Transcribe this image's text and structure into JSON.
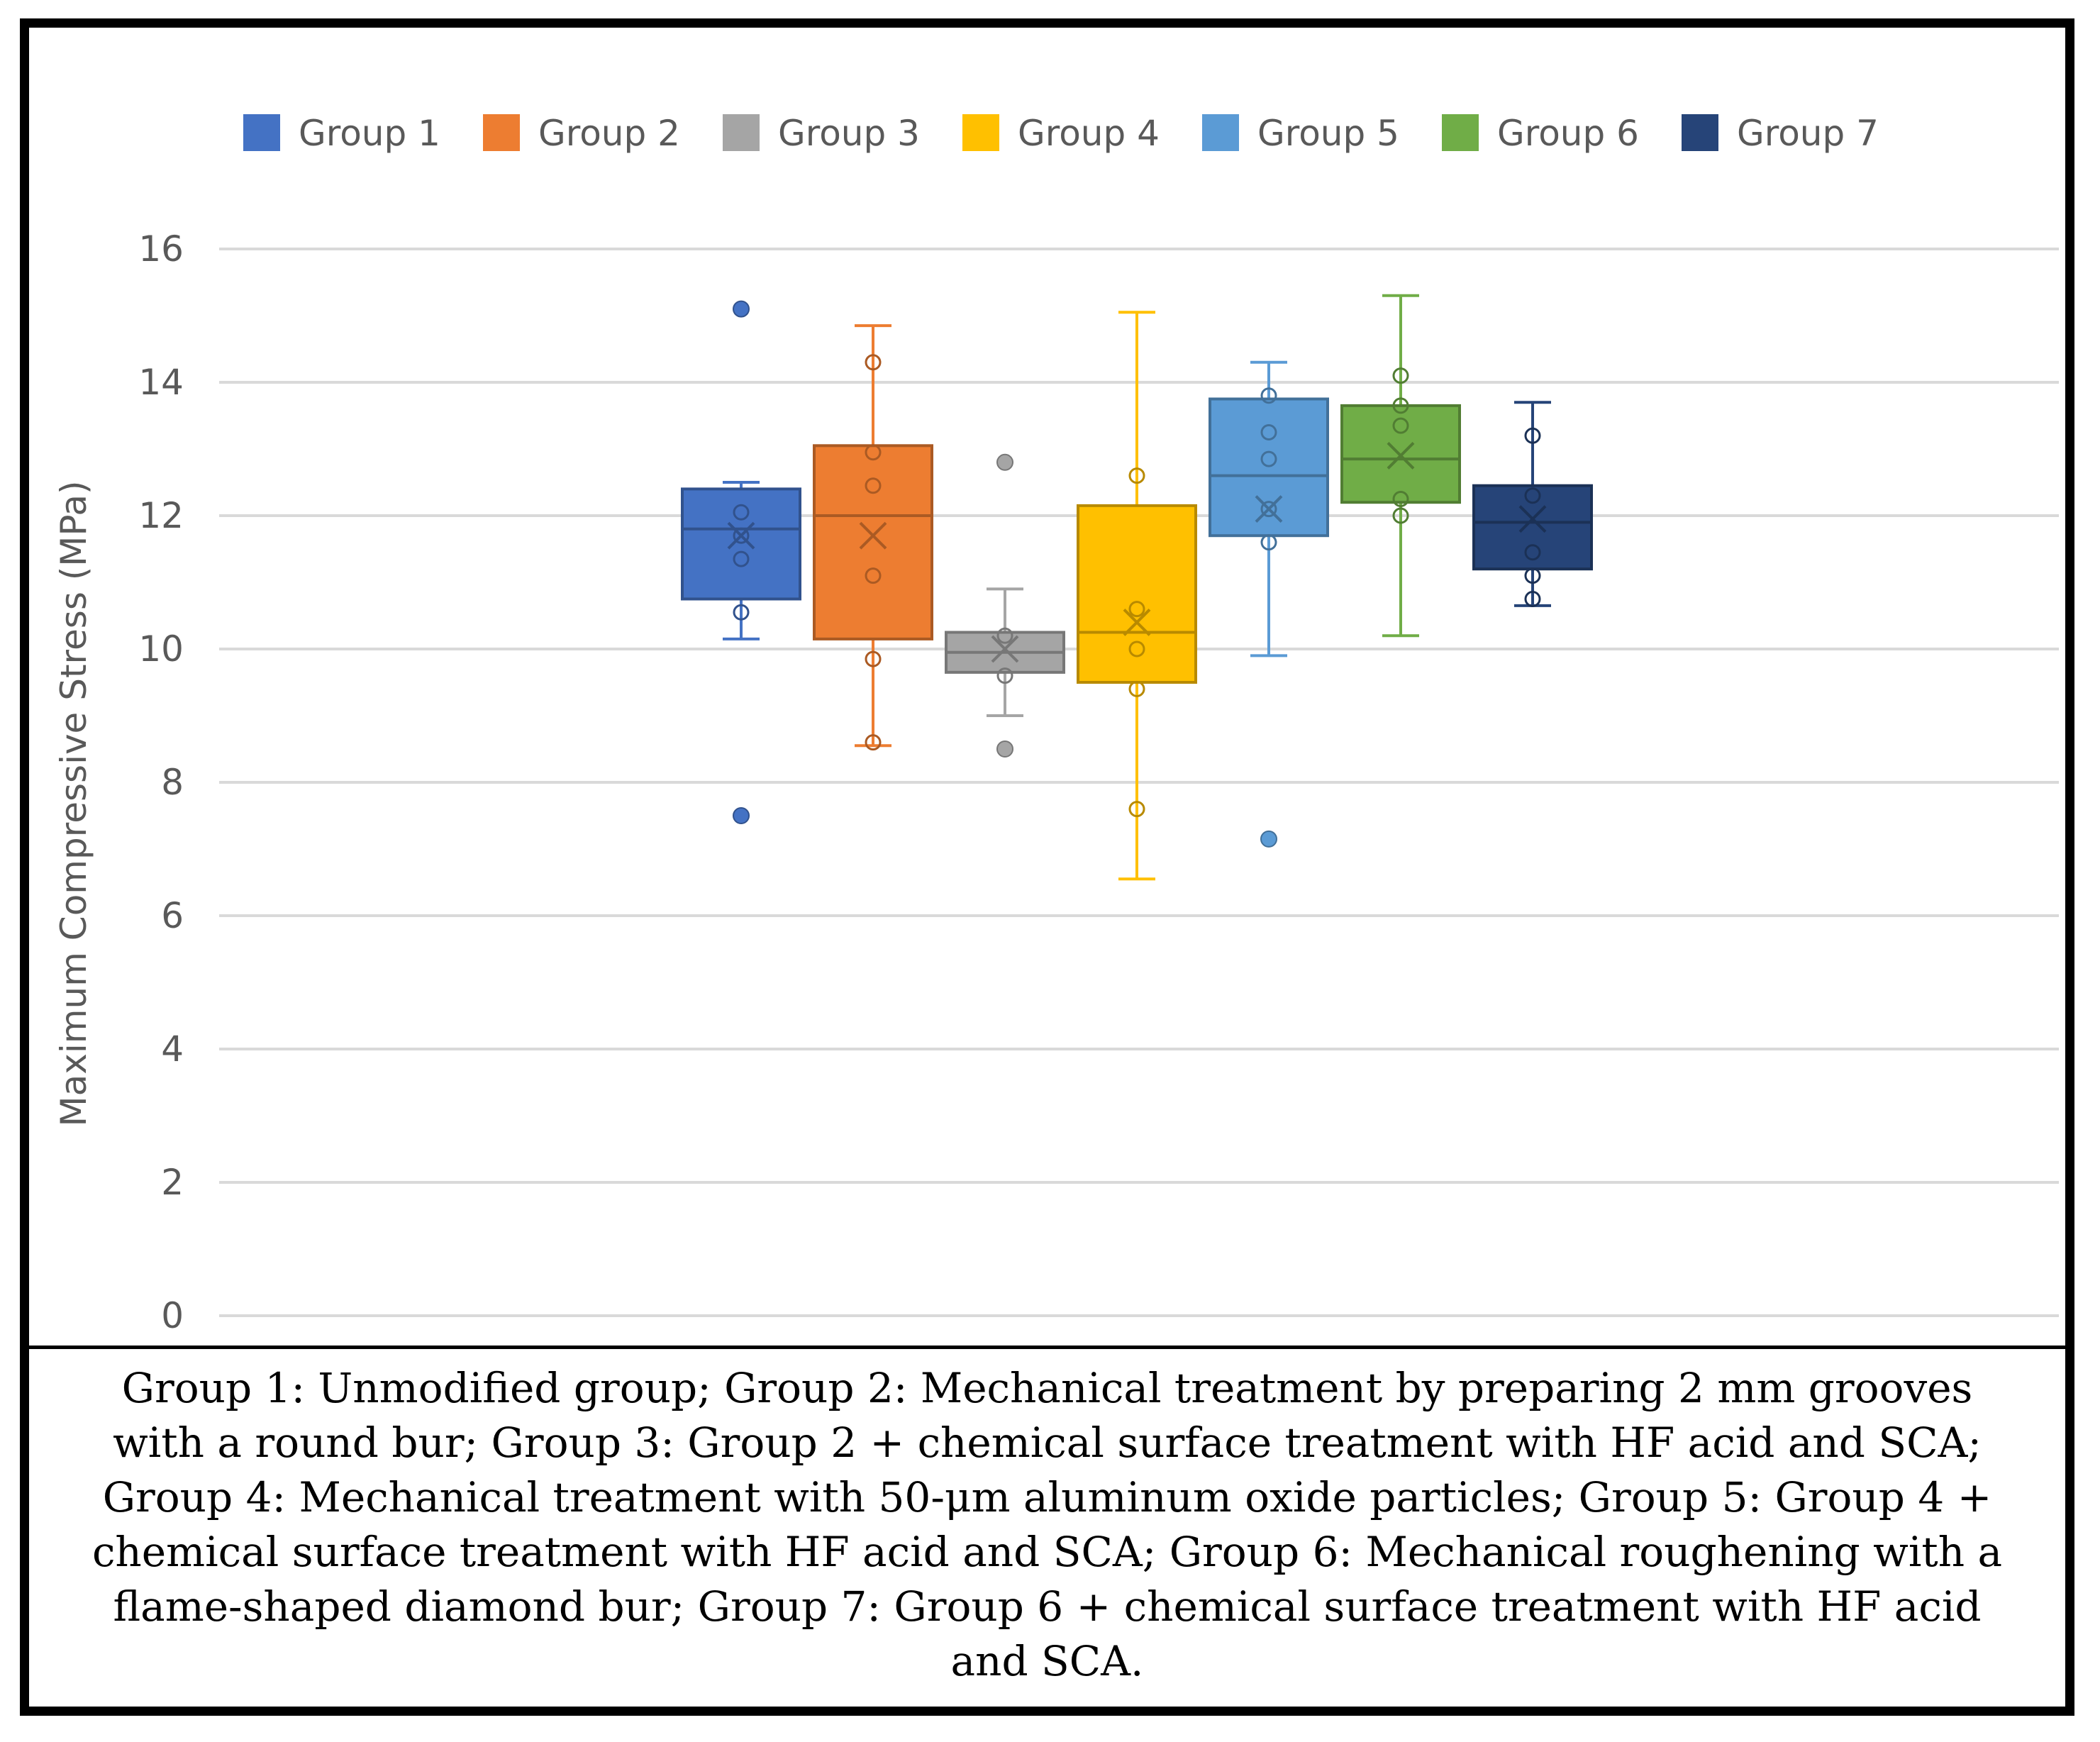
{
  "chart_data": {
    "type": "box",
    "title": "",
    "xlabel": "",
    "ylabel": "Maximum Compressive Stress (MPa)",
    "ylim": [
      0,
      16
    ],
    "yticks": [
      0,
      2,
      4,
      6,
      8,
      10,
      12,
      14,
      16
    ],
    "grid": true,
    "legend_position": "top",
    "series": [
      {
        "name": "Group 1",
        "color": "#4472C4",
        "whisker_low": 10.15,
        "q1": 10.75,
        "median": 11.8,
        "q3": 12.4,
        "whisker_high": 12.5,
        "mean": 11.7,
        "points": [
          10.55,
          11.35,
          11.7,
          12.05
        ],
        "outliers": [
          7.5,
          15.1
        ]
      },
      {
        "name": "Group 2",
        "color": "#ED7D31",
        "whisker_low": 8.55,
        "q1": 10.15,
        "median": 12.0,
        "q3": 13.05,
        "whisker_high": 14.85,
        "mean": 11.7,
        "points": [
          8.6,
          9.85,
          11.1,
          12.45,
          12.95,
          14.3
        ],
        "outliers": []
      },
      {
        "name": "Group 3",
        "color": "#A5A5A5",
        "whisker_low": 9.0,
        "q1": 9.65,
        "median": 9.95,
        "q3": 10.25,
        "whisker_high": 10.9,
        "mean": 10.0,
        "points": [
          9.6,
          10.2
        ],
        "outliers": [
          8.5,
          12.8
        ]
      },
      {
        "name": "Group 4",
        "color": "#FFC000",
        "whisker_low": 6.55,
        "q1": 9.5,
        "median": 10.25,
        "q3": 12.15,
        "whisker_high": 15.05,
        "mean": 10.4,
        "points": [
          7.6,
          9.4,
          10.0,
          10.6,
          12.6
        ],
        "outliers": []
      },
      {
        "name": "Group 5",
        "color": "#5B9BD5",
        "whisker_low": 9.9,
        "q1": 11.7,
        "median": 12.6,
        "q3": 13.75,
        "whisker_high": 14.3,
        "mean": 12.1,
        "points": [
          11.6,
          12.1,
          12.85,
          13.25,
          13.8
        ],
        "outliers": [
          7.15
        ]
      },
      {
        "name": "Group 6",
        "color": "#70AD47",
        "whisker_low": 10.2,
        "q1": 12.2,
        "median": 12.85,
        "q3": 13.65,
        "whisker_high": 15.3,
        "mean": 12.9,
        "points": [
          12.0,
          12.25,
          13.35,
          13.65,
          14.1
        ],
        "outliers": []
      },
      {
        "name": "Group 7",
        "color": "#264478",
        "whisker_low": 10.65,
        "q1": 11.2,
        "median": 11.9,
        "q3": 12.45,
        "whisker_high": 13.7,
        "mean": 11.95,
        "points": [
          10.75,
          11.1,
          11.45,
          12.3,
          13.2
        ],
        "outliers": []
      }
    ]
  },
  "caption": "Group 1: Unmodified group; Group 2: Mechanical treatment by preparing 2 mm grooves with a round bur; Group 3: Group 2 + chemical surface treatment with HF acid and SCA; Group 4: Mechanical treatment with 50-μm aluminum oxide particles; Group 5: Group 4 + chemical surface treatment with HF acid and SCA; Group 6: Mechanical roughening with a flame-shaped diamond bur; Group 7: Group 6 + chemical surface treatment with HF acid and SCA."
}
